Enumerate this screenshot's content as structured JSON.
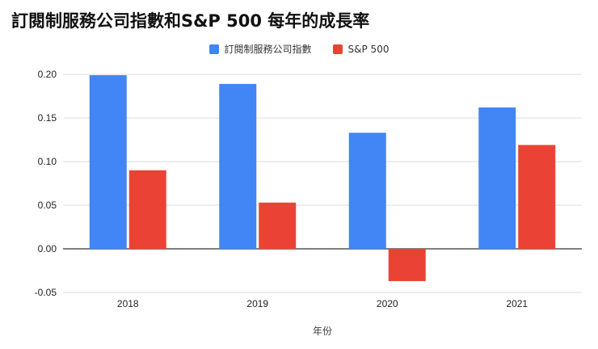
{
  "chart_data": {
    "type": "bar",
    "title": "訂閱制服務公司指數和S&P 500 每年的成長率",
    "xlabel": "年份",
    "ylabel": "",
    "categories": [
      "2018",
      "2019",
      "2020",
      "2021"
    ],
    "series": [
      {
        "name": "訂閱制服務公司指數",
        "color": "#4285f4",
        "values": [
          0.199,
          0.189,
          0.133,
          0.162
        ]
      },
      {
        "name": "S&P 500",
        "color": "#ea4335",
        "values": [
          0.09,
          0.053,
          -0.037,
          0.119
        ]
      }
    ],
    "ylim": [
      -0.05,
      0.2
    ],
    "yticks": [
      -0.05,
      0.0,
      0.05,
      0.1,
      0.15,
      0.2
    ],
    "ytick_labels": [
      "-0.05",
      "0.00",
      "0.05",
      "0.10",
      "0.15",
      "0.20"
    ],
    "grid": true,
    "legend_position": "top-center"
  }
}
